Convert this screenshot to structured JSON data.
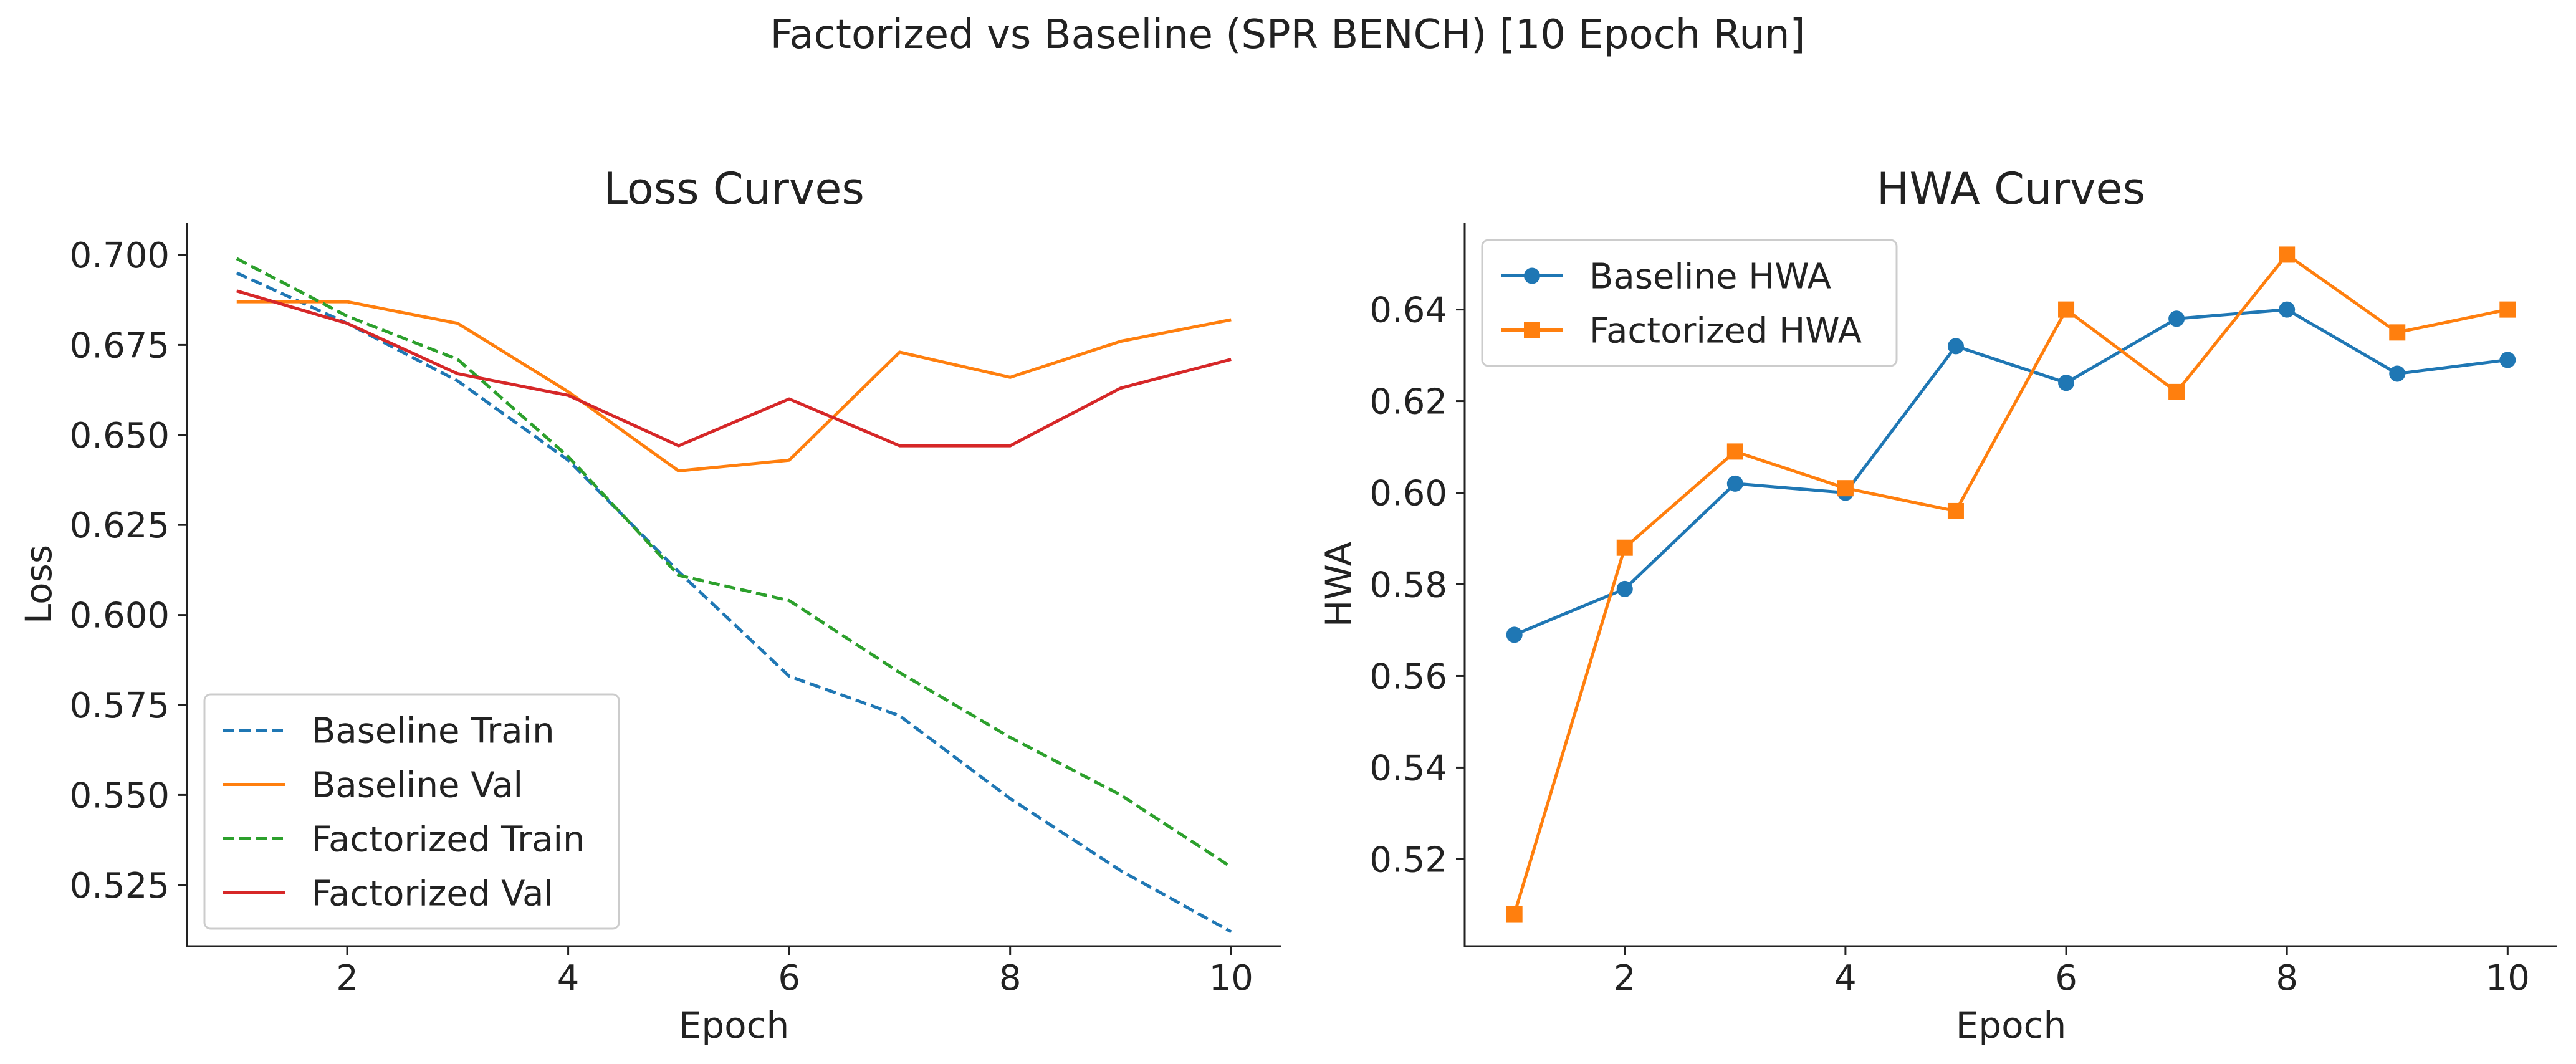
{
  "figure": {
    "title": "Factorized vs Baseline (SPR BENCH) [10 Epoch Run]"
  },
  "chart_data": [
    {
      "type": "line",
      "title": "Loss Curves",
      "xlabel": "Epoch",
      "ylabel": "Loss",
      "xlim": [
        0.55,
        10.45
      ],
      "ylim": [
        0.508,
        0.709
      ],
      "xticks": [
        2,
        4,
        6,
        8,
        10
      ],
      "yticks": [
        0.525,
        0.55,
        0.575,
        0.6,
        0.625,
        0.65,
        0.675,
        0.7
      ],
      "ytick_decimals": 3,
      "grid": false,
      "legend": "lower-left",
      "x": [
        1,
        2,
        3,
        4,
        5,
        6,
        7,
        8,
        9,
        10
      ],
      "series": [
        {
          "name": "Baseline Train",
          "color": "#1f77b4",
          "style": "dashed",
          "marker": "none",
          "values": [
            0.695,
            0.681,
            0.665,
            0.643,
            0.612,
            0.583,
            0.572,
            0.549,
            0.529,
            0.512
          ]
        },
        {
          "name": "Baseline Val",
          "color": "#ff7f0e",
          "style": "solid",
          "marker": "none",
          "values": [
            0.687,
            0.687,
            0.681,
            0.662,
            0.64,
            0.643,
            0.673,
            0.666,
            0.676,
            0.682
          ]
        },
        {
          "name": "Factorized Train",
          "color": "#2ca02c",
          "style": "dashed",
          "marker": "none",
          "values": [
            0.699,
            0.683,
            0.671,
            0.644,
            0.611,
            0.604,
            0.584,
            0.566,
            0.55,
            0.53
          ]
        },
        {
          "name": "Factorized Val",
          "color": "#d62728",
          "style": "solid",
          "marker": "none",
          "values": [
            0.69,
            0.681,
            0.667,
            0.661,
            0.647,
            0.66,
            0.647,
            0.647,
            0.663,
            0.671
          ]
        }
      ]
    },
    {
      "type": "line",
      "title": "HWA Curves",
      "xlabel": "Epoch",
      "ylabel": "HWA",
      "xlim": [
        0.55,
        10.45
      ],
      "ylim": [
        0.501,
        0.659
      ],
      "xticks": [
        2,
        4,
        6,
        8,
        10
      ],
      "yticks": [
        0.52,
        0.54,
        0.56,
        0.58,
        0.6,
        0.62,
        0.64
      ],
      "ytick_decimals": 2,
      "grid": false,
      "legend": "upper-left",
      "x": [
        1,
        2,
        3,
        4,
        5,
        6,
        7,
        8,
        9,
        10
      ],
      "series": [
        {
          "name": "Baseline HWA",
          "color": "#1f77b4",
          "style": "solid",
          "marker": "circle",
          "values": [
            0.569,
            0.579,
            0.602,
            0.6,
            0.632,
            0.624,
            0.638,
            0.64,
            0.626,
            0.629
          ]
        },
        {
          "name": "Factorized HWA",
          "color": "#ff7f0e",
          "style": "solid",
          "marker": "square",
          "values": [
            0.508,
            0.588,
            0.609,
            0.601,
            0.596,
            0.64,
            0.622,
            0.652,
            0.635,
            0.64
          ]
        }
      ]
    }
  ]
}
